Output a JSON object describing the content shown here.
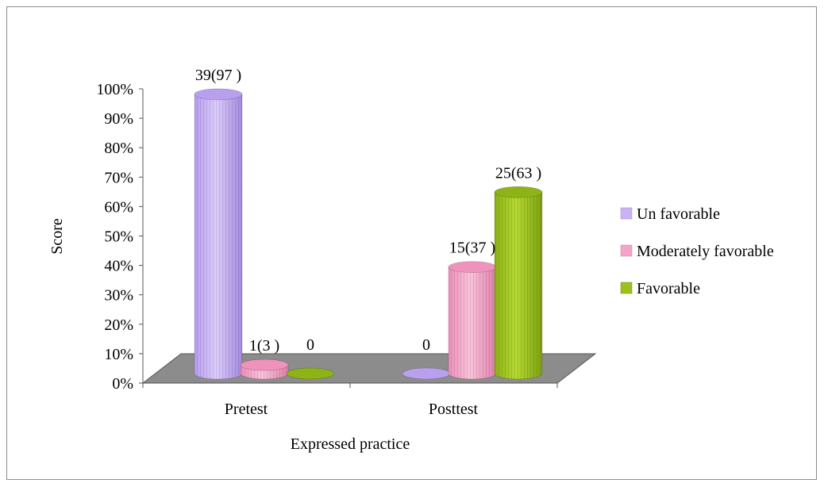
{
  "chart_data": {
    "type": "bar",
    "title": "",
    "xlabel": "Expressed practice",
    "ylabel": "Score",
    "ylim": [
      0,
      100
    ],
    "yticks": [
      "0%",
      "10%",
      "20%",
      "30%",
      "40%",
      "50%",
      "60%",
      "70%",
      "80%",
      "90%",
      "100%"
    ],
    "categories": [
      "Pretest",
      "Posttest"
    ],
    "legend_position": "right",
    "series": [
      {
        "name": "Un favorable",
        "color": "#c9b3f5",
        "values": [
          97,
          0
        ],
        "labels": [
          "39(97 )",
          "0"
        ]
      },
      {
        "name": "Moderately favorable",
        "color": "#f5a3c8",
        "values": [
          3,
          37
        ],
        "labels": [
          "1(3 )",
          "15(37 )"
        ]
      },
      {
        "name": "Favorable",
        "color": "#9bc21a",
        "values": [
          0,
          63
        ],
        "labels": [
          "0",
          "25(63 )"
        ]
      }
    ]
  }
}
